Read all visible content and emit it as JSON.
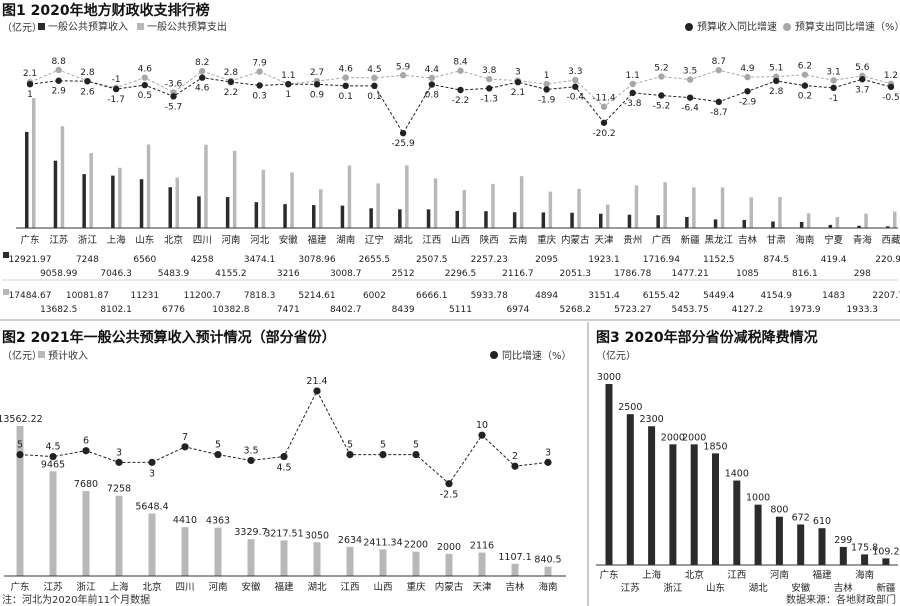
{
  "colors": {
    "income": "#2b2b2b",
    "expense": "#b8b8b8",
    "line_dark": "#222222",
    "line_light": "#a8a8a8",
    "divider": "#9a9a9a"
  },
  "fig1": {
    "title": "图1 2020年地方财政收支排行榜",
    "unit": "（亿元）",
    "legend_income": "一般公共预算收入",
    "legend_expense": "一般公共预算支出",
    "legend_income_growth": "预算收入同比增速",
    "legend_expense_growth": "预算支出同比增速（%）"
  },
  "fig2": {
    "title": "图2 2021年一般公共预算收入预计情况（部分省份）",
    "unit": "（亿元）",
    "legend_bar": "预计收入",
    "legend_line": "同比增速（%）",
    "note": "注：河北为2020年前11个月数据"
  },
  "fig3": {
    "title": "图3 2020年部分省份减税降费情况",
    "unit": "（亿元）",
    "source": "数据来源：各地财政部门"
  },
  "chart_data": [
    {
      "type": "bar",
      "id": "fig1",
      "categories": [
        "广东",
        "江苏",
        "浙江",
        "上海",
        "山东",
        "北京",
        "四川",
        "河南",
        "河北",
        "安徽",
        "福建",
        "湖南",
        "辽宁",
        "湖北",
        "江西",
        "山西",
        "陕西",
        "云南",
        "重庆",
        "内蒙古",
        "天津",
        "贵州",
        "广西",
        "新疆",
        "黑龙江",
        "吉林",
        "甘肃",
        "海南",
        "宁夏",
        "青海",
        "西藏"
      ],
      "series": [
        {
          "name": "一般公共预算收入",
          "values": [
            12921.97,
            9058.99,
            7248,
            7046.3,
            6560,
            5483.9,
            4258,
            4155.2,
            3474.1,
            3216,
            3078.96,
            3008.7,
            2655.5,
            2512,
            2507.5,
            2296.5,
            2257.23,
            2116.7,
            2095,
            2051.3,
            1923.1,
            1786.78,
            1716.94,
            1477.21,
            1152.5,
            1085,
            874.5,
            816.1,
            419.4,
            298,
            220.98
          ]
        },
        {
          "name": "一般公共预算支出",
          "values": [
            17484.67,
            13682.5,
            10081.87,
            8102.1,
            11231,
            6776,
            11200.7,
            10382.8,
            7818.3,
            7471,
            5214.61,
            8402.7,
            6002,
            8439,
            6666.1,
            5111,
            5933.78,
            6974,
            4894,
            5268.2,
            3151.4,
            5723.27,
            6155.42,
            5453.75,
            5449.4,
            4127.2,
            4154.9,
            1973.9,
            1483,
            1933.3,
            2207.77
          ]
        },
        {
          "name": "预算收入同比增速",
          "values": [
            1,
            2.9,
            2.6,
            -1.7,
            0.5,
            -5.7,
            4.6,
            2.2,
            0.3,
            1,
            0.9,
            0.1,
            0.1,
            -25.9,
            0.8,
            -2.2,
            -1.3,
            2.1,
            -1.9,
            -0.4,
            -20.2,
            -3.8,
            -5.2,
            -6.4,
            -8.7,
            -2.9,
            2.8,
            0.2,
            -1,
            3.7,
            -0.5
          ]
        },
        {
          "name": "预算支出同比增速",
          "values": [
            2.1,
            8.8,
            2.8,
            -1,
            4.6,
            -3.6,
            8.2,
            2.8,
            7.9,
            1.1,
            2.7,
            4.6,
            4.5,
            5.9,
            4.4,
            8.4,
            3.8,
            3,
            1,
            3.3,
            -11.4,
            1.1,
            5.2,
            3.5,
            8.7,
            4.9,
            5.1,
            6.2,
            3.1,
            5.6,
            1.2
          ]
        }
      ],
      "table_income_labels": [
        "12921.97",
        "9058.99",
        "7248",
        "7046.3",
        "6560",
        "5483.9",
        "4258",
        "4155.2",
        "3474.1",
        "3216",
        "3078.96",
        "3008.7",
        "2655.5",
        "2512",
        "2507.5",
        "2296.5",
        "2257.23",
        "2116.7",
        "2095",
        "2051.3",
        "1923.1",
        "1786.78",
        "1716.94",
        "1477.21",
        "1152.5",
        "1085",
        "874.5",
        "816.1",
        "419.4",
        "298",
        "220.98"
      ],
      "table_expense_labels": [
        "17484.67",
        "13682.5",
        "10081.87",
        "8102.1",
        "11231",
        "6776",
        "11200.7",
        "10382.8",
        "7818.3",
        "7471",
        "5214.61",
        "8402.7",
        "6002",
        "8439",
        "6666.1",
        "5111",
        "5933.78",
        "6974",
        "4894",
        "5268.2",
        "3151.4",
        "5723.27",
        "6155.42",
        "5453.75",
        "5449.4",
        "4127.2",
        "4154.9",
        "1973.9",
        "1483",
        "1933.3",
        "2207.77"
      ]
    },
    {
      "type": "bar",
      "id": "fig2",
      "categories": [
        "广东",
        "江苏",
        "浙江",
        "上海",
        "北京",
        "四川",
        "河南",
        "安徽",
        "福建",
        "湖北",
        "江西",
        "山西",
        "重庆",
        "内蒙古",
        "天津",
        "吉林",
        "海南"
      ],
      "series": [
        {
          "name": "预计收入",
          "values": [
            13562.22,
            9465,
            7680,
            7258,
            5648.4,
            4410,
            4363,
            3329.7,
            3217.51,
            3050,
            2634,
            2411.34,
            2200,
            2000,
            2116,
            1107.1,
            840.5
          ]
        },
        {
          "name": "同比增速（%）",
          "values": [
            5,
            4.5,
            6,
            3,
            3,
            7,
            5,
            3.5,
            4.5,
            21.4,
            5,
            5,
            5,
            -2.5,
            10,
            2,
            3
          ]
        }
      ]
    },
    {
      "type": "bar",
      "id": "fig3",
      "categories": [
        "广东",
        "江苏",
        "上海",
        "浙江",
        "北京",
        "山东",
        "江西",
        "湖北",
        "河南",
        "安徽",
        "福建",
        "吉林",
        "海南",
        "新疆"
      ],
      "values": [
        3000,
        2500,
        2300,
        2000,
        2000,
        1850,
        1400,
        1000,
        800,
        672,
        610,
        299,
        175.8,
        109.2
      ]
    }
  ]
}
